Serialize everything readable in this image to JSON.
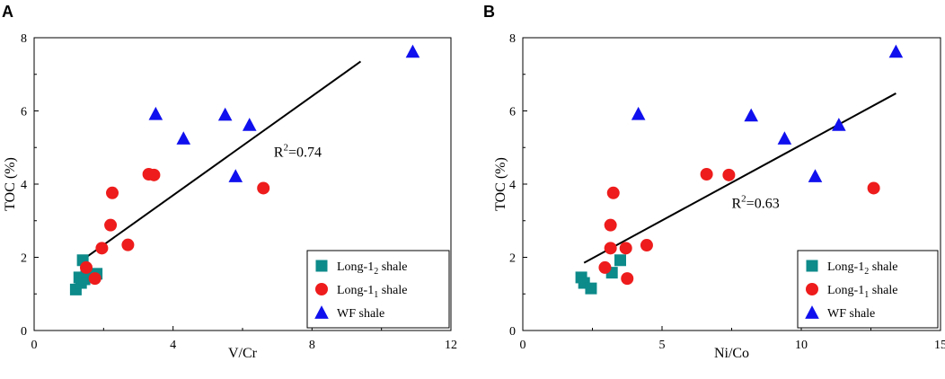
{
  "colors": {
    "long12": "#0d8a8a",
    "long11": "#ee1c1c",
    "wf": "#1010ee",
    "fit": "#000000"
  },
  "chart_data": [
    {
      "type": "scatter",
      "panel": "A",
      "xlabel": "V/Cr",
      "ylabel": "TOC (%)",
      "xlim": [
        0,
        12
      ],
      "ylim": [
        0,
        8
      ],
      "xticks": [
        "0",
        "4",
        "8",
        "12"
      ],
      "yticks": [
        "0",
        "2",
        "4",
        "6",
        "8"
      ],
      "annotation": {
        "text": "R",
        "sup": "2",
        "value": "=0.74",
        "x": 6.9,
        "y": 4.75
      },
      "fit_line": {
        "x": [
          1.35,
          9.4
        ],
        "y": [
          1.9,
          7.35
        ]
      },
      "legend": [
        {
          "base": "Long-1",
          "sub": "2",
          "rest": " shale",
          "marker": "square",
          "color": "#0d8a8a"
        },
        {
          "base": "Long-1",
          "sub": "1",
          "rest": " shale",
          "marker": "circle",
          "color": "#ee1c1c"
        },
        {
          "base": "WF shale",
          "sub": "",
          "rest": "",
          "marker": "triangle",
          "color": "#1010ee"
        }
      ],
      "series": [
        {
          "name": "Long-12 shale",
          "marker": "square",
          "color": "#0d8a8a",
          "x": [
            1.2,
            1.3,
            1.35,
            1.45,
            1.5,
            1.8,
            1.4
          ],
          "y": [
            1.12,
            1.45,
            1.3,
            1.4,
            1.6,
            1.55,
            1.92
          ]
        },
        {
          "name": "Long-11 shale",
          "marker": "circle",
          "color": "#ee1c1c",
          "x": [
            1.5,
            1.75,
            1.95,
            2.2,
            2.25,
            2.7,
            3.3,
            3.45,
            6.6
          ],
          "y": [
            1.72,
            1.42,
            2.25,
            2.88,
            3.76,
            2.34,
            4.27,
            4.25,
            3.89
          ]
        },
        {
          "name": "WF shale",
          "marker": "triangle",
          "color": "#1010ee",
          "x": [
            3.5,
            4.3,
            5.5,
            6.2,
            5.8,
            10.9
          ],
          "y": [
            5.92,
            5.25,
            5.9,
            5.62,
            4.22,
            7.62
          ]
        }
      ]
    },
    {
      "type": "scatter",
      "panel": "B",
      "xlabel": "Ni/Co",
      "ylabel": "TOC (%)",
      "xlim": [
        0,
        15
      ],
      "ylim": [
        0,
        8
      ],
      "xticks": [
        "0",
        "5",
        "10",
        "15"
      ],
      "yticks": [
        "0",
        "2",
        "4",
        "6",
        "8"
      ],
      "annotation": {
        "text": "R",
        "sup": "2",
        "value": "=0.63",
        "x": 7.5,
        "y": 3.35
      },
      "fit_line": {
        "x": [
          2.2,
          13.4
        ],
        "y": [
          1.85,
          6.48
        ]
      },
      "legend": [
        {
          "base": "Long-1",
          "sub": "2",
          "rest": " shale",
          "marker": "square",
          "color": "#0d8a8a"
        },
        {
          "base": "Long-1",
          "sub": "1",
          "rest": " shale",
          "marker": "circle",
          "color": "#ee1c1c"
        },
        {
          "base": "WF shale",
          "sub": "",
          "rest": "",
          "marker": "triangle",
          "color": "#1010ee"
        }
      ],
      "series": [
        {
          "name": "Long-12 shale",
          "marker": "square",
          "color": "#0d8a8a",
          "x": [
            2.1,
            2.2,
            2.45,
            3.2,
            3.5
          ],
          "y": [
            1.45,
            1.3,
            1.15,
            1.58,
            1.92
          ]
        },
        {
          "name": "Long-11 shale",
          "marker": "circle",
          "color": "#ee1c1c",
          "x": [
            2.95,
            3.15,
            3.25,
            3.15,
            3.7,
            3.75,
            4.45,
            6.6,
            7.4,
            12.6
          ],
          "y": [
            1.72,
            2.88,
            3.76,
            2.25,
            2.25,
            1.42,
            2.33,
            4.27,
            4.25,
            3.89
          ]
        },
        {
          "name": "WF shale",
          "marker": "triangle",
          "color": "#1010ee",
          "x": [
            4.15,
            8.2,
            9.4,
            10.5,
            11.35,
            13.4
          ],
          "y": [
            5.92,
            5.88,
            5.25,
            4.22,
            5.62,
            7.62
          ]
        }
      ]
    }
  ]
}
